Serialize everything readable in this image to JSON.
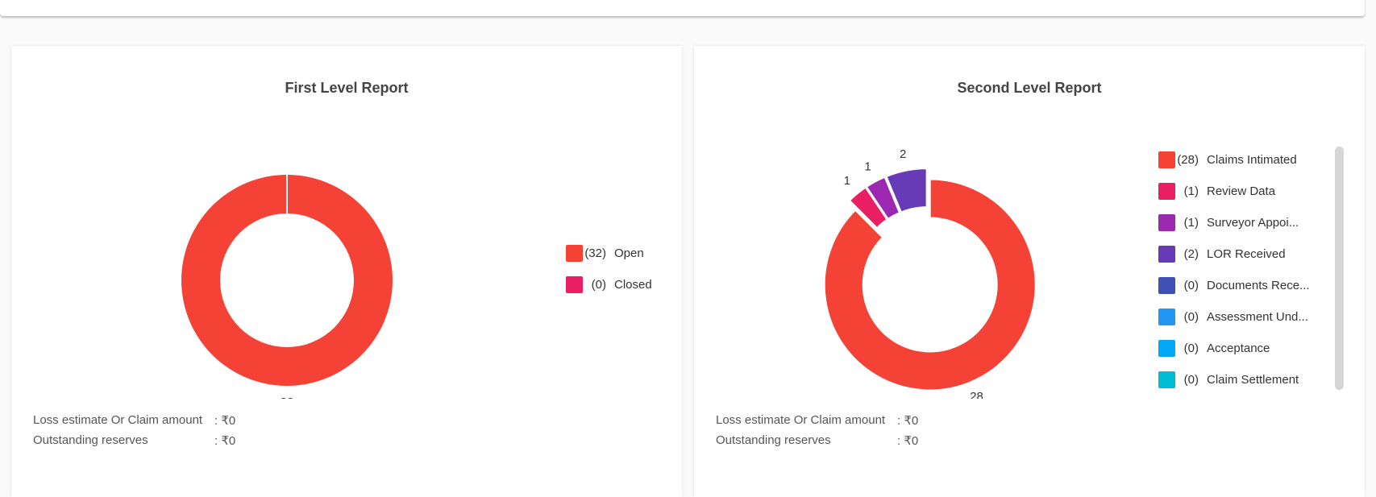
{
  "chart_data": [
    {
      "type": "donut",
      "title": "First Level Report",
      "categories": [
        "Open",
        "Closed"
      ],
      "values": [
        32,
        0
      ],
      "legend_counts": [
        "(32)",
        "(0)"
      ],
      "colors": [
        "#f44336",
        "#e91e63"
      ],
      "legend": "right",
      "annotations": [
        {
          "label": "Loss estimate Or Claim amount",
          "value": ": ₹0"
        },
        {
          "label": "Outstanding reserves",
          "value": ": ₹0"
        }
      ]
    },
    {
      "type": "donut",
      "title": "Second Level Report",
      "categories": [
        "Claims Intimated",
        "Review Data",
        "Surveyor Appoi...",
        "LOR Received",
        "Documents Rece...",
        "Assessment Und...",
        "Acceptance",
        "Claim Settlement"
      ],
      "values": [
        28,
        1,
        1,
        2,
        0,
        0,
        0,
        0
      ],
      "legend_counts": [
        "(28)",
        "(1)",
        "(1)",
        "(2)",
        "(0)",
        "(0)",
        "(0)",
        "(0)"
      ],
      "colors": [
        "#f44336",
        "#e91e63",
        "#9c27b0",
        "#673ab7",
        "#3f51b5",
        "#2196f3",
        "#03a9f4",
        "#00bcd4"
      ],
      "legend": "right",
      "annotations": [
        {
          "label": "Loss estimate Or Claim amount",
          "value": ": ₹0"
        },
        {
          "label": "Outstanding reserves",
          "value": ": ₹0"
        }
      ]
    }
  ]
}
